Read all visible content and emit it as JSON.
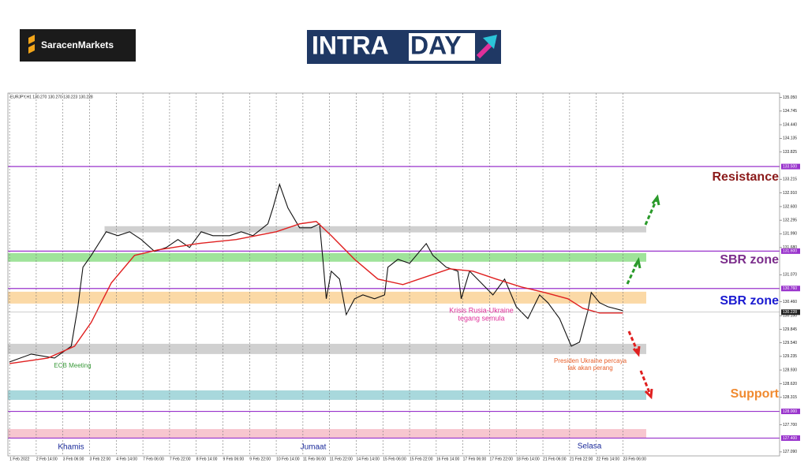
{
  "brand": {
    "left_logo": "SaracenMarkets",
    "right_logo_a": "INTRA",
    "right_logo_b": "DAY"
  },
  "chart_data": {
    "type": "line",
    "header": "EURJPY,H1  130.270 130.270 130.223 130.228",
    "xlim": [
      -1,
      462
    ],
    "ylim": [
      127.0,
      135.15
    ],
    "xticks": [
      {
        "value": 0,
        "label": "1 Feb 2022"
      },
      {
        "value": 16,
        "label": "2 Feb 14:00"
      },
      {
        "value": 32,
        "label": "3 Feb 06:00"
      },
      {
        "value": 48,
        "label": "3 Feb 22:00"
      },
      {
        "value": 64,
        "label": "4 Feb 14:00"
      },
      {
        "value": 80,
        "label": "7 Feb 06:00"
      },
      {
        "value": 96,
        "label": "7 Feb 22:00"
      },
      {
        "value": 112,
        "label": "8 Feb 14:00"
      },
      {
        "value": 128,
        "label": "9 Feb 06:00"
      },
      {
        "value": 144,
        "label": "9 Feb 22:00"
      },
      {
        "value": 160,
        "label": "10 Feb 14:00"
      },
      {
        "value": 176,
        "label": "11 Feb 06:00"
      },
      {
        "value": 192,
        "label": "11 Feb 22:00"
      },
      {
        "value": 208,
        "label": "14 Feb 14:00"
      },
      {
        "value": 224,
        "label": "15 Feb 06:00"
      },
      {
        "value": 240,
        "label": "15 Feb 22:00"
      },
      {
        "value": 256,
        "label": "16 Feb 14:00"
      },
      {
        "value": 272,
        "label": "17 Feb 06:00"
      },
      {
        "value": 288,
        "label": "17 Feb 22:00"
      },
      {
        "value": 304,
        "label": "18 Feb 14:00"
      },
      {
        "value": 320,
        "label": "21 Feb 06:00"
      },
      {
        "value": 336,
        "label": "21 Feb 22:00"
      },
      {
        "value": 352,
        "label": "22 Feb 14:00"
      },
      {
        "value": 368,
        "label": "23 Feb 06:00"
      }
    ],
    "yticks": [
      {
        "value": 135.05,
        "label": "135.050"
      },
      {
        "value": 134.745,
        "label": "134.745"
      },
      {
        "value": 134.44,
        "label": "134.440"
      },
      {
        "value": 134.135,
        "label": "134.135"
      },
      {
        "value": 133.825,
        "label": "133.825"
      },
      {
        "value": 133.215,
        "label": "133.215"
      },
      {
        "value": 132.91,
        "label": "132.910"
      },
      {
        "value": 132.6,
        "label": "132.600"
      },
      {
        "value": 132.295,
        "label": "132.295"
      },
      {
        "value": 131.99,
        "label": "131.990"
      },
      {
        "value": 131.68,
        "label": "131.680"
      },
      {
        "value": 131.07,
        "label": "131.070"
      },
      {
        "value": 130.46,
        "label": "130.460"
      },
      {
        "value": 130.15,
        "label": "130.150"
      },
      {
        "value": 129.845,
        "label": "129.845"
      },
      {
        "value": 129.54,
        "label": "129.540"
      },
      {
        "value": 129.235,
        "label": "129.235"
      },
      {
        "value": 128.93,
        "label": "128.930"
      },
      {
        "value": 128.62,
        "label": "128.620"
      },
      {
        "value": 128.315,
        "label": "128.315"
      },
      {
        "value": 127.7,
        "label": "127.700"
      },
      {
        "value": 127.09,
        "label": "127.090"
      }
    ],
    "grid": true,
    "series": [
      {
        "name": "EURJPY",
        "color": "#111111",
        "x": [
          0,
          13,
          27,
          37,
          41,
          44,
          49,
          58,
          65,
          72,
          79,
          87,
          94,
          101,
          108,
          115,
          122,
          132,
          139,
          146,
          155,
          158,
          162,
          167,
          174,
          181,
          186,
          188,
          190,
          193,
          198,
          202,
          207,
          212,
          219,
          225,
          227,
          233,
          240,
          250,
          254,
          262,
          269,
          271,
          276,
          283,
          290,
          297,
          304,
          311,
          318,
          323,
          330,
          337,
          342,
          347,
          349,
          354,
          359,
          368
        ],
        "values": [
          129.11,
          129.288,
          129.199,
          129.465,
          130.351,
          131.238,
          131.504,
          132.036,
          131.947,
          132.036,
          131.859,
          131.593,
          131.681,
          131.859,
          131.681,
          132.036,
          131.947,
          131.947,
          132.036,
          131.947,
          132.213,
          132.568,
          133.1,
          132.568,
          132.124,
          132.124,
          132.213,
          131.415,
          130.529,
          131.149,
          130.972,
          130.174,
          130.529,
          130.617,
          130.529,
          130.617,
          131.238,
          131.415,
          131.327,
          131.77,
          131.504,
          131.238,
          131.149,
          130.529,
          131.149,
          130.883,
          130.617,
          130.972,
          130.351,
          130.085,
          130.617,
          130.44,
          130.085,
          129.465,
          129.554,
          130.263,
          130.671,
          130.44,
          130.351,
          130.263
        ]
      },
      {
        "name": "MA",
        "color": "#e02020",
        "x": [
          0,
          23,
          39,
          49,
          61,
          75,
          89,
          113,
          136,
          160,
          174,
          184,
          193,
          207,
          221,
          236,
          250,
          264,
          278,
          292,
          307,
          321,
          335,
          344,
          354,
          368
        ],
        "values": [
          129.075,
          129.199,
          129.465,
          129.997,
          130.883,
          131.504,
          131.628,
          131.77,
          131.859,
          132.036,
          132.213,
          132.266,
          131.947,
          131.415,
          130.972,
          130.848,
          131.025,
          131.202,
          131.149,
          130.972,
          130.795,
          130.671,
          130.529,
          130.316,
          130.21,
          130.21
        ]
      }
    ],
    "current_price": {
      "value": 130.228,
      "label": "130.228"
    },
    "levels": [
      {
        "value": 133.5,
        "label": "133.500",
        "color": "#9933cc"
      },
      {
        "value": 131.6,
        "label": "131.600",
        "color": "#9933cc"
      },
      {
        "value": 130.76,
        "label": "130.760",
        "color": "#9933cc"
      },
      {
        "value": 128.0,
        "label": "128.000",
        "color": "#9933cc"
      },
      {
        "value": 127.4,
        "label": "127.400",
        "color": "#9933cc"
      }
    ],
    "zones": [
      {
        "low": 132.02,
        "high": 132.16,
        "from": 57,
        "to": 382,
        "color": "#d0d0d0"
      },
      {
        "low": 131.362,
        "high": 131.557,
        "from": -1,
        "to": 382,
        "color": "#9fe39a"
      },
      {
        "low": 130.422,
        "high": 130.688,
        "from": -1,
        "to": 382,
        "color": "#fbd9a6"
      },
      {
        "low": 129.288,
        "high": 129.518,
        "from": -1,
        "to": 382,
        "color": "#d0d0d0"
      },
      {
        "low": 128.259,
        "high": 128.472,
        "from": -1,
        "to": 382,
        "color": "#a8d8dc"
      },
      {
        "low": 127.408,
        "high": 127.603,
        "from": -1,
        "to": 382,
        "color": "#f7c6cf"
      }
    ],
    "annotations": [
      {
        "lines": [
          "Resistance"
        ],
        "color": "#8b1a1a"
      },
      {
        "lines": [
          "SBR zone"
        ],
        "color": "#7b2d8b"
      },
      {
        "lines": [
          "SBR zone"
        ],
        "color": "#1a1ad1"
      },
      {
        "lines": [
          "Support"
        ],
        "color": "#f08a30"
      },
      {
        "lines": [
          "ECB Meeting"
        ],
        "color": "#3a9a3a"
      },
      {
        "lines": [
          "Krisis Rusia-Ukraine",
          "tegang semula"
        ],
        "color": "#e0309a"
      },
      {
        "lines": [
          "Presiden Ukraine percaya",
          "tak akan perang"
        ],
        "color": "#e8602c"
      },
      {
        "lines": [
          "Khamis"
        ],
        "color": "#1a2a9a"
      },
      {
        "lines": [
          "Jumaat"
        ],
        "color": "#1a2a9a"
      },
      {
        "lines": [
          "Selasa"
        ],
        "color": "#1a2a9a"
      }
    ]
  }
}
